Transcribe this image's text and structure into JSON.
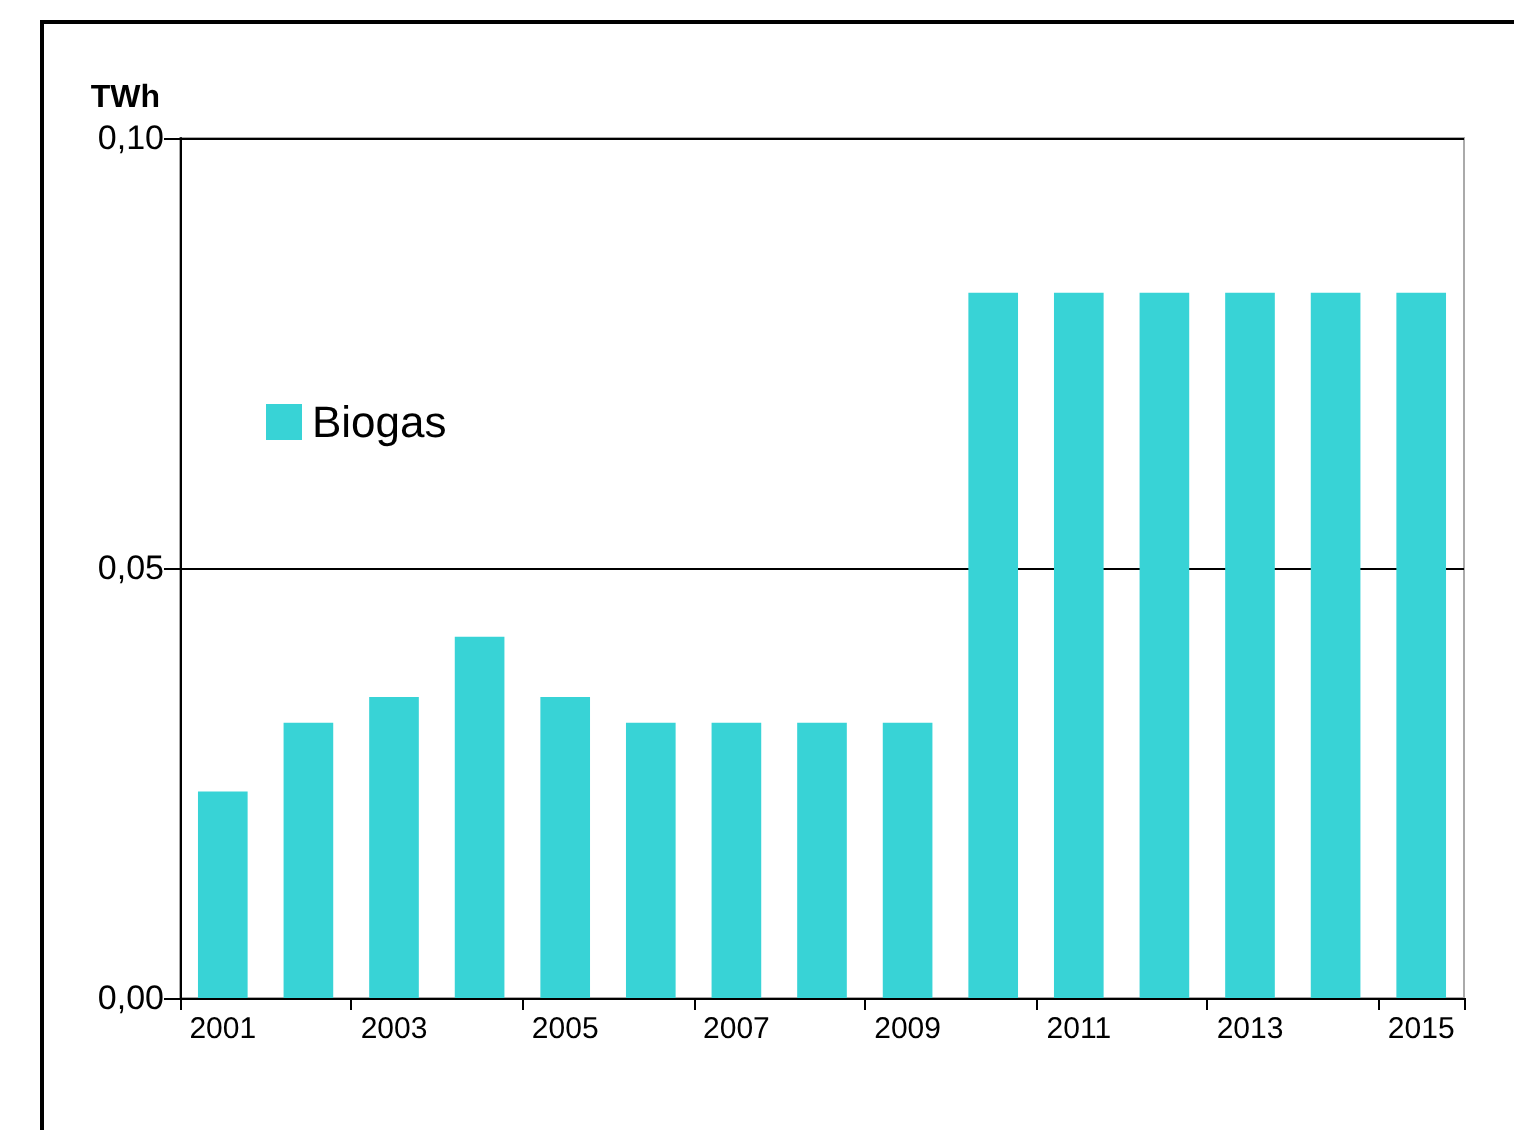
{
  "chart_data": {
    "type": "bar",
    "ylabel": "TWh",
    "categories": [
      "2001",
      null,
      "2003",
      null,
      "2005",
      null,
      "2007",
      null,
      "2009",
      null,
      "2011",
      null,
      "2013",
      null,
      "2015"
    ],
    "series": [
      {
        "name": "Biogas",
        "color": "#38d3d6",
        "values": [
          0.024,
          0.032,
          0.035,
          0.042,
          0.035,
          0.032,
          0.032,
          0.032,
          0.032,
          0.082,
          0.082,
          0.082,
          0.082,
          0.082,
          0.082
        ]
      }
    ],
    "ylim": [
      0,
      0.1
    ],
    "yticks": [
      {
        "value": 0,
        "label": "0,00"
      },
      {
        "value": 0.05,
        "label": "0,05"
      },
      {
        "value": 0.1,
        "label": "0,10"
      }
    ],
    "grid": "y",
    "legend": "top left"
  }
}
